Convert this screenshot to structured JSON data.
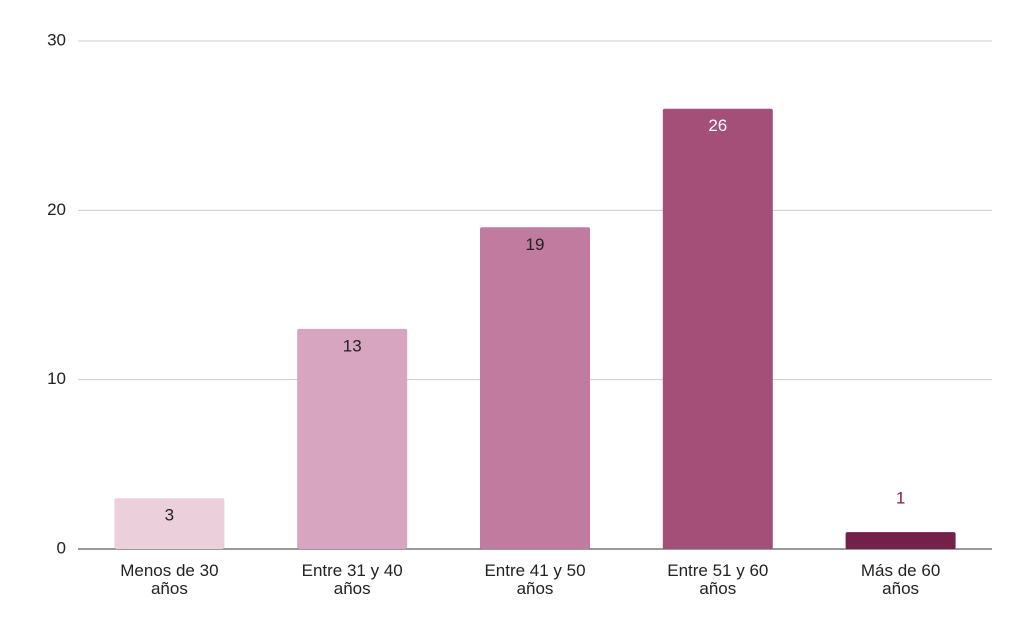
{
  "chart_data": {
    "type": "bar",
    "categories": [
      "Menos de 30 años",
      "Entre 31 y 40 años",
      "Entre 41 y 50 años",
      "Entre 51 y 60 años",
      "Más de 60 años"
    ],
    "values": [
      3,
      13,
      19,
      26,
      1
    ],
    "colors": [
      "#ebd0dc",
      "#d7a5bf",
      "#c17b9f",
      "#a34f78",
      "#751f4b"
    ],
    "ylim": [
      0,
      30
    ],
    "yticks": [
      0,
      10,
      20,
      30
    ],
    "grid": true
  }
}
